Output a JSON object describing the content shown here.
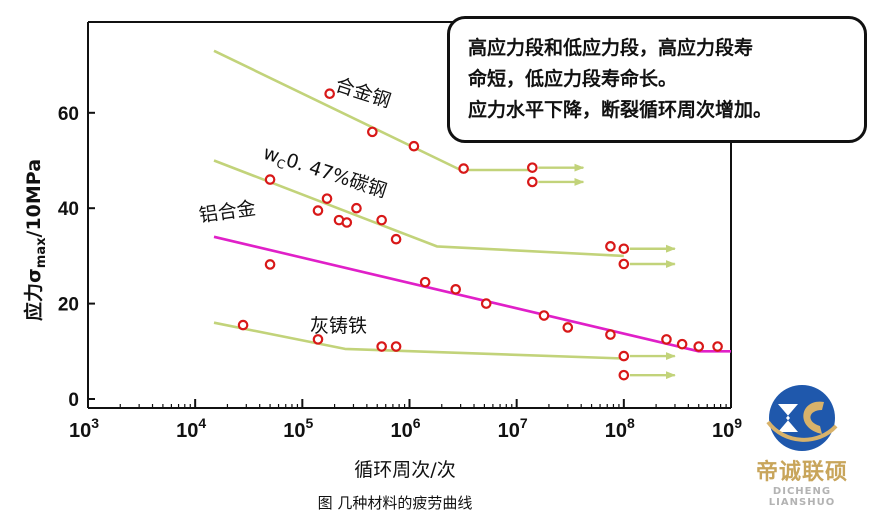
{
  "chart_data": {
    "type": "line",
    "caption": "图  几种材料的疲劳曲线",
    "xlabel": "循环周次/次",
    "ylabel_prefix": "应力σ",
    "ylabel_sub": "max",
    "ylabel_suffix": "/10MPa",
    "x_scale": "log",
    "xlim": [
      1000,
      1000000000
    ],
    "ylim": [
      0,
      75
    ],
    "y_ticks": [
      0,
      20,
      40,
      60
    ],
    "y_tick_labels": [
      "0",
      "20",
      "40",
      "60"
    ],
    "x_ticks": [
      1000,
      10000,
      100000,
      1000000,
      10000000,
      100000000,
      1000000000
    ],
    "x_tick_labels": [
      {
        "base": "10",
        "exp": "3"
      },
      {
        "base": "10",
        "exp": "4"
      },
      {
        "base": "10",
        "exp": "5"
      },
      {
        "base": "10",
        "exp": "6"
      },
      {
        "base": "10",
        "exp": "7"
      },
      {
        "base": "10",
        "exp": "8"
      },
      {
        "base": "10",
        "exp": "9"
      }
    ],
    "grid": false,
    "series": [
      {
        "name": "合金钢",
        "color": "#c2d37a",
        "curve": [
          [
            15000,
            73
          ],
          [
            3000000,
            48
          ],
          [
            15000000,
            48
          ]
        ],
        "points": [
          [
            180000,
            64
          ],
          [
            450000,
            56
          ],
          [
            1100000,
            53
          ],
          [
            3200000,
            48.3
          ],
          [
            14000000,
            48.5
          ],
          [
            14000000,
            45.5
          ]
        ],
        "runouts": [
          [
            14000000,
            48.5
          ],
          [
            14000000,
            45.5
          ]
        ]
      },
      {
        "name": "w_C0.47%碳钢",
        "label_main": "0. 47%碳钢",
        "label_w": "w",
        "label_sub": "C",
        "color": "#c2d37a",
        "curve": [
          [
            15000,
            50
          ],
          [
            1800000,
            32
          ],
          [
            100000000,
            30
          ]
        ],
        "points": [
          [
            50000,
            46
          ],
          [
            140000,
            39.5
          ],
          [
            170000,
            42
          ],
          [
            220000,
            37.5
          ],
          [
            260000,
            37
          ],
          [
            320000,
            40
          ],
          [
            550000,
            37.5
          ],
          [
            750000,
            33.5
          ],
          [
            75000000,
            32
          ],
          [
            100000000,
            31.5
          ],
          [
            100000000,
            28.3
          ]
        ],
        "runouts": [
          [
            100000000,
            31.5
          ],
          [
            100000000,
            28.3
          ]
        ]
      },
      {
        "name": "铝合金",
        "color": "#e020c8",
        "curve": [
          [
            15000,
            34
          ],
          [
            500000000,
            10
          ],
          [
            1000000000,
            10
          ]
        ],
        "points": [
          [
            50000,
            28.2
          ],
          [
            1400000,
            24.5
          ],
          [
            2700000,
            23
          ],
          [
            5200000,
            20
          ],
          [
            18000000,
            17.5
          ],
          [
            30000000,
            15
          ],
          [
            75000000,
            13.5
          ],
          [
            250000000,
            12.5
          ],
          [
            350000000,
            11.5
          ],
          [
            500000000,
            11
          ],
          [
            750000000,
            11
          ]
        ],
        "runouts": []
      },
      {
        "name": "灰铸铁",
        "color": "#c2d37a",
        "curve": [
          [
            15000,
            16
          ],
          [
            250000,
            10.5
          ],
          [
            100000000,
            8.5
          ]
        ],
        "points": [
          [
            28000,
            15.5
          ],
          [
            140000,
            12.5
          ],
          [
            550000,
            11
          ],
          [
            750000,
            11
          ],
          [
            100000000,
            9
          ],
          [
            100000000,
            5
          ]
        ],
        "runouts": [
          [
            100000000,
            9
          ],
          [
            100000000,
            5
          ]
        ]
      }
    ]
  },
  "note": {
    "lines": [
      "高应力段和低应力段，高应力段寿",
      "命短，低应力段寿命长。",
      "应力水平下降，断裂循环周次增加。"
    ]
  },
  "logo": {
    "name": "帝诚联硕",
    "sub": "DICHENG LIANSHUO",
    "colors": {
      "blue": "#1f58ac",
      "gold": "#d8b26a"
    }
  },
  "colors": {
    "point": "#d81818",
    "axis": "#111111"
  }
}
